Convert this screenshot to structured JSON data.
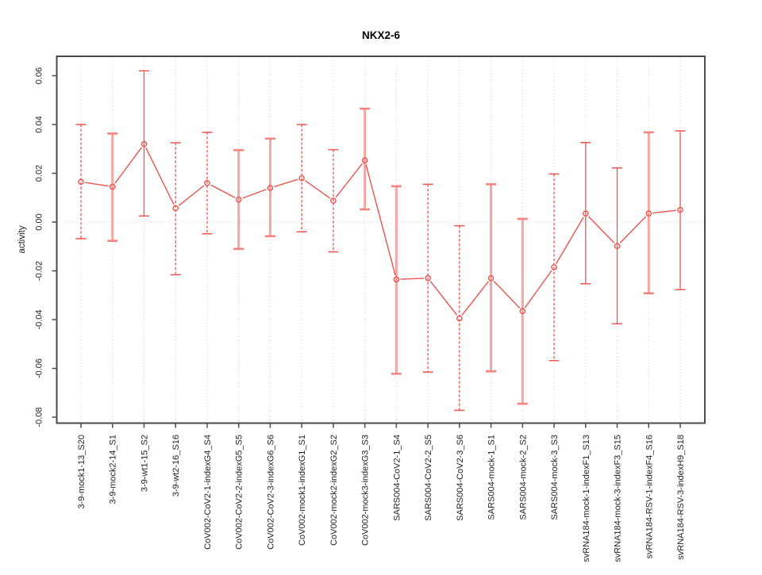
{
  "window": {
    "background": "#ffffff"
  },
  "chart_data": {
    "type": "line",
    "subtype": "points-with-error-bars",
    "title": "NKX2-6",
    "xlabel": "",
    "ylabel": "activity",
    "ylim": [
      -0.0826,
      0.068
    ],
    "yticks": [
      0.06,
      0.04,
      0.02,
      0,
      -0.02,
      -0.04,
      -0.06,
      -0.08
    ],
    "ytick_labels": [
      "0.06",
      "0.04",
      "0.02",
      "0.00",
      "-0.02",
      "-0.04",
      "-0.06",
      "-0.08"
    ],
    "grid": {
      "vertical_gridlines": "dotted-at-each-category",
      "horizontal_zero_line": true,
      "horizontal_gridlines": false
    },
    "legend_position": "none",
    "x_tick_label_rotation": 90,
    "categories": [
      "3-9-mock1-13_S20",
      "3-9-mock2-14_S1",
      "3-9-wt1-15_S2",
      "3-9-wt2-16_S16",
      "CoV002-CoV2-1-indexG4_S4",
      "CoV002-CoV2-2-indexG5_S5",
      "CoV002-CoV2-3-indexG6_S6",
      "CoV002-mock1-indexG1_S1",
      "CoV002-mock2-indexG2_S2",
      "CoV002-mock3-indexG3_S3",
      "SARS004-CoV2-1_S4",
      "SARS004-CoV2-2_S5",
      "SARS004-CoV2-3_S6",
      "SARS004-mock-1_S1",
      "SARS004-mock-2_S2",
      "SARS004-mock-3_S3",
      "svRNA184-mock-1-indexF1_S13",
      "svRNA184-mock-3-indexF3_S15",
      "svRNA184-RSV-1-indexF4_S16",
      "svRNA184-RSV-3-indexH9_S18"
    ],
    "series": [
      {
        "name": "activity",
        "marker": "open-circle",
        "values": [
          0.0165,
          0.0145,
          0.032,
          0.0057,
          0.016,
          0.0092,
          0.014,
          0.018,
          0.0088,
          0.0253,
          -0.0235,
          -0.023,
          -0.0395,
          -0.023,
          -0.0365,
          -0.0185,
          0.0035,
          -0.0098,
          0.0035,
          0.005
        ],
        "error_high": [
          0.04,
          0.0363,
          0.062,
          0.0325,
          0.0368,
          0.0295,
          0.0342,
          0.04,
          0.0297,
          0.0465,
          0.0147,
          0.0155,
          -0.0015,
          0.0155,
          0.0013,
          0.0197,
          0.0326,
          0.0222,
          0.0368,
          0.0374
        ],
        "error_low": [
          -0.0068,
          -0.0077,
          0.0025,
          -0.0216,
          -0.0048,
          -0.011,
          -0.0058,
          -0.004,
          -0.0122,
          0.0052,
          -0.0622,
          -0.0615,
          -0.0772,
          -0.0612,
          -0.0745,
          -0.0568,
          -0.0253,
          -0.0417,
          -0.0292,
          -0.0277
        ],
        "error_bar_styles": [
          "thin-dashed",
          "thick",
          "thin-solid",
          "thin-dashed",
          "thin-dashed",
          "thick",
          "thick",
          "thin-dashed",
          "thin-dashed",
          "thick",
          "thick",
          "thin-dashed",
          "thin-dashed",
          "thick",
          "thick",
          "thin-dashed",
          "thin-solid",
          "thin-solid",
          "thick",
          "thin-solid"
        ]
      }
    ],
    "colors": {
      "series_red": "#ef5350",
      "error_bar_pale_red": "#f8a5a1",
      "error_bar_cap_mid_red": "#f4837e",
      "gridline_gray": "#d4d4d4",
      "box_gray": "#4a4a4a",
      "text_black": "#1f1f1f"
    }
  }
}
